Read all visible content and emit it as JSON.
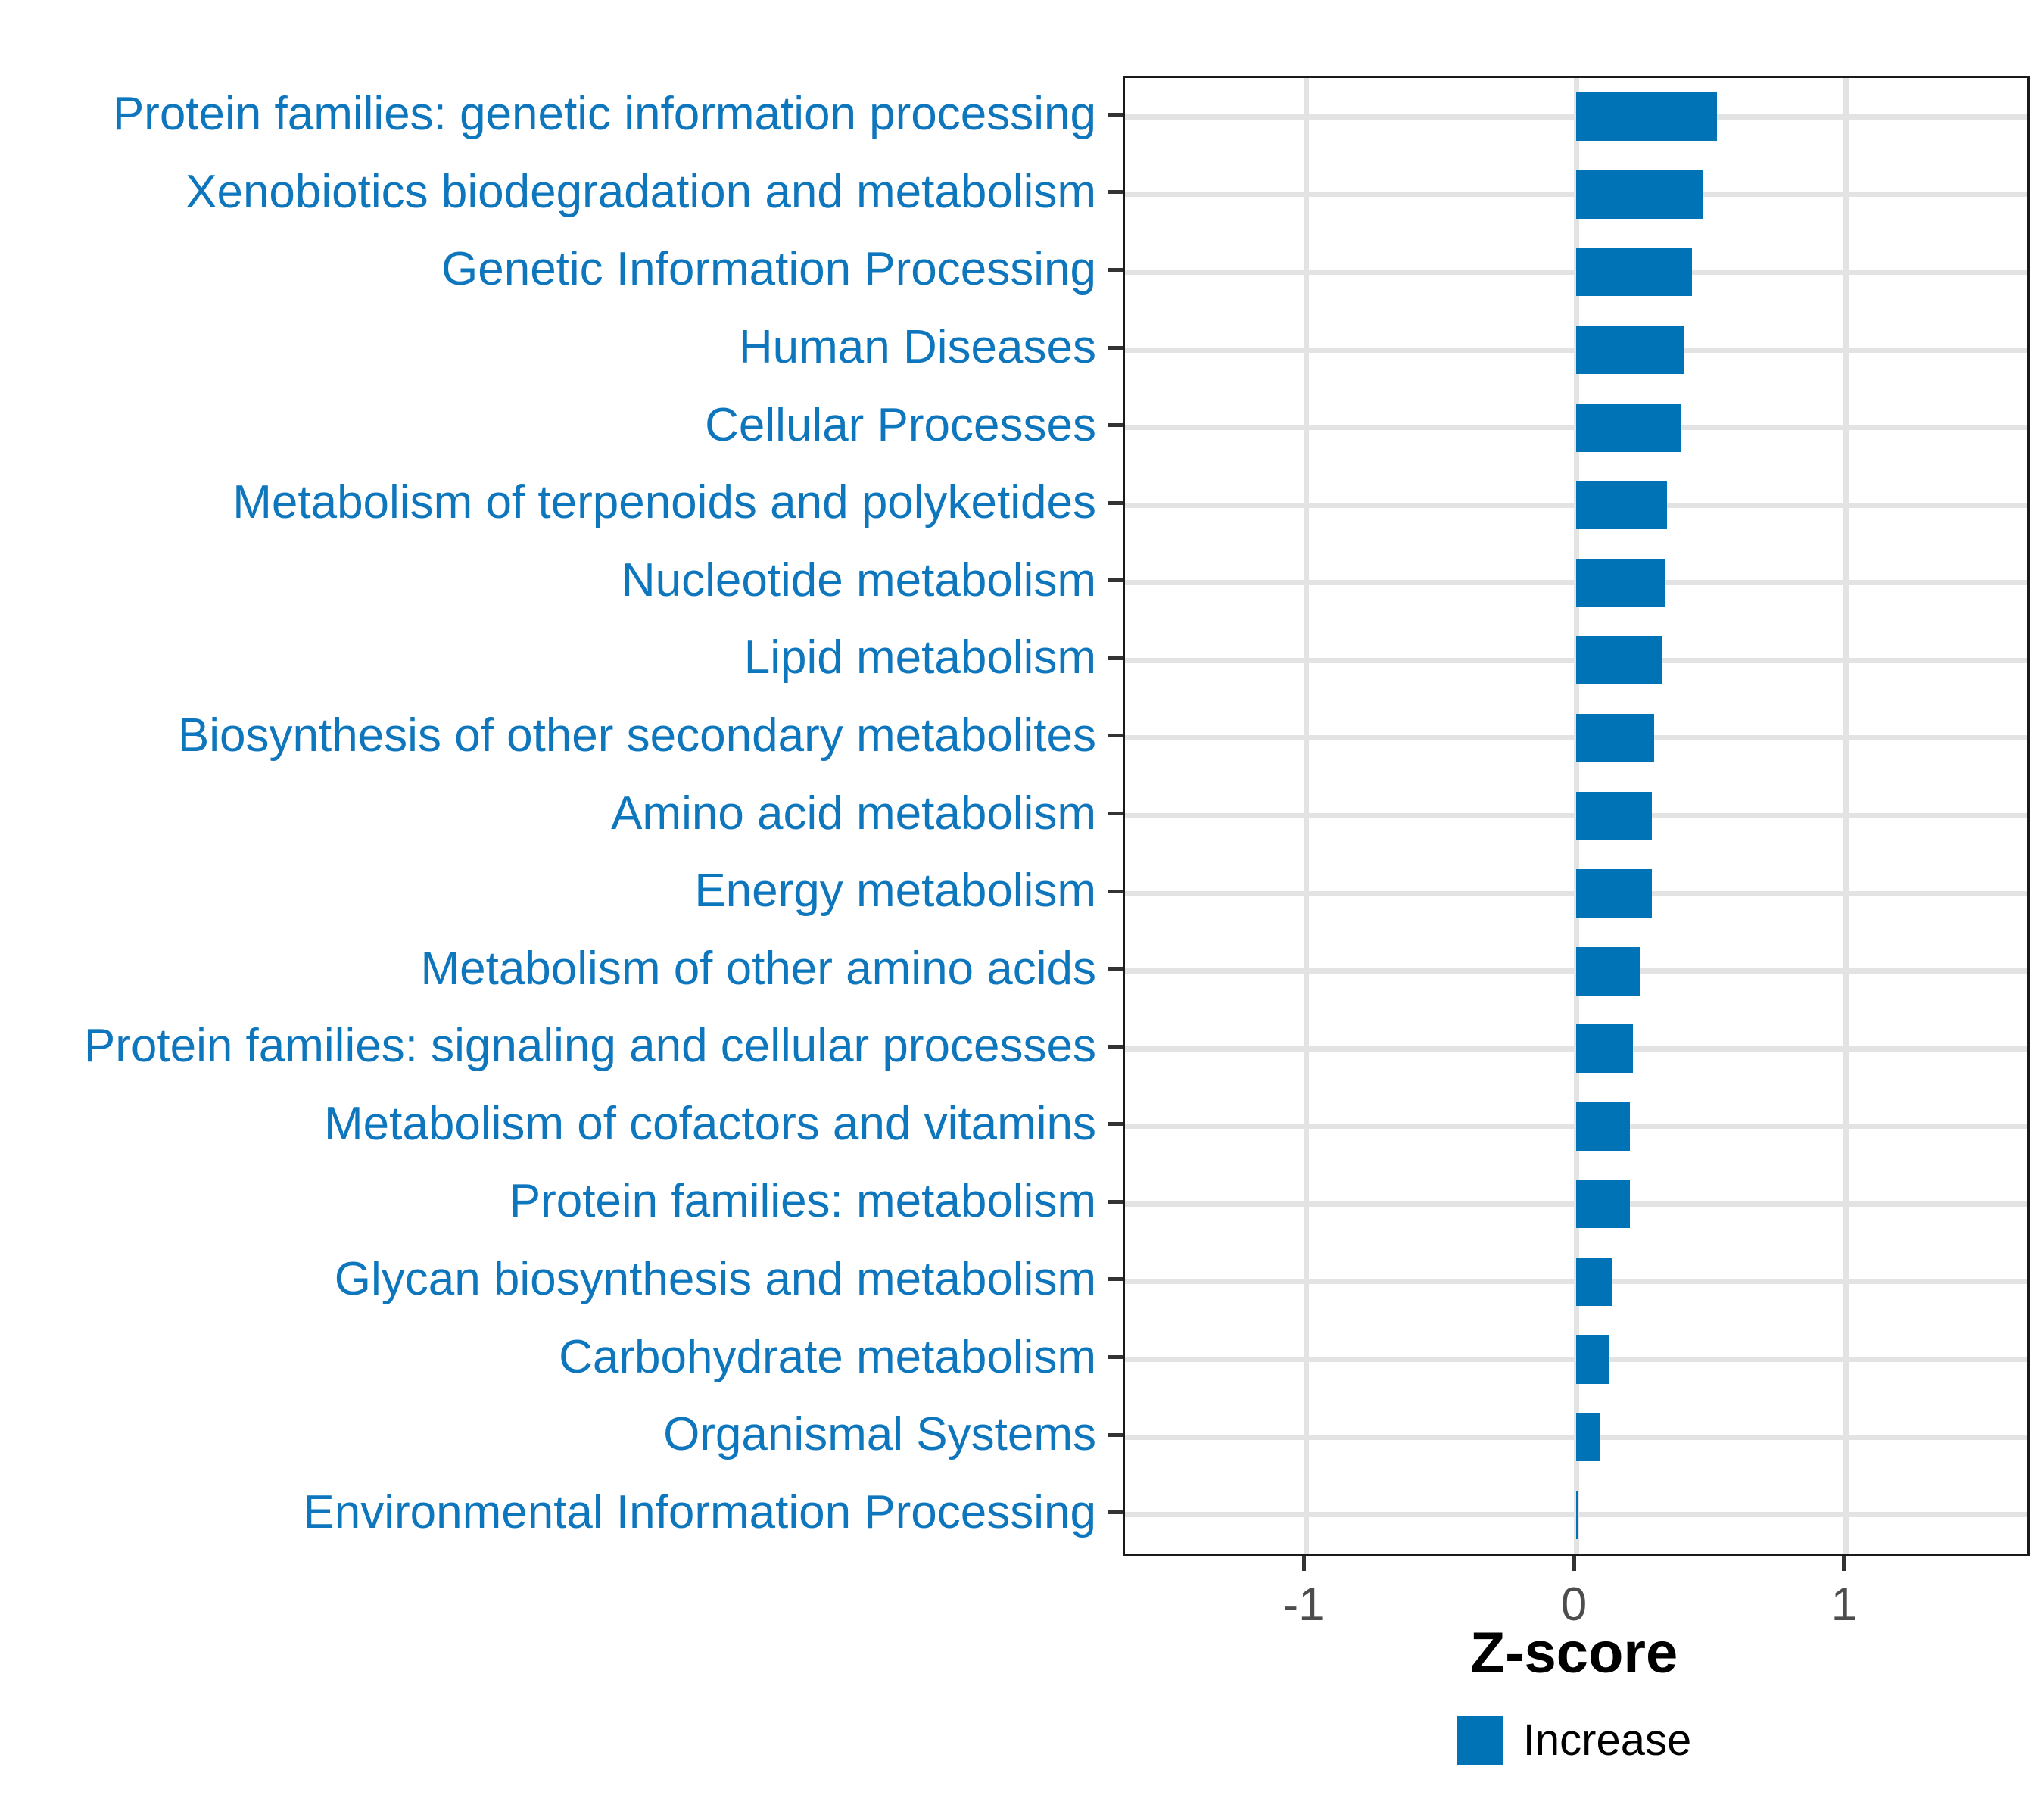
{
  "chart_data": {
    "type": "bar",
    "orientation": "horizontal",
    "title": "",
    "xlabel": "Z-score",
    "ylabel": "",
    "grid": true,
    "legend": {
      "label": "Increase",
      "position": "bottom-center"
    },
    "xlim": [
      -1.67,
      1.67
    ],
    "xticks": [
      -1,
      0,
      1
    ],
    "xtick_labels": [
      "-1",
      "0",
      "1"
    ],
    "categories": [
      "Protein families: genetic information processing",
      "Xenobiotics biodegradation and metabolism",
      "Genetic Information Processing",
      "Human Diseases",
      "Cellular Processes",
      "Metabolism of terpenoids and polyketides",
      "Nucleotide metabolism",
      "Lipid metabolism",
      "Biosynthesis of other secondary metabolites",
      "Amino acid metabolism",
      "Energy metabolism",
      "Metabolism of other amino acids",
      "Protein families: signaling and cellular processes",
      "Metabolism of cofactors and vitamins",
      "Protein families: metabolism",
      "Glycan biosynthesis and metabolism",
      "Carbohydrate metabolism",
      "Organismal Systems",
      "Environmental Information Processing"
    ],
    "values": [
      0.52,
      0.47,
      0.43,
      0.4,
      0.39,
      0.335,
      0.33,
      0.32,
      0.29,
      0.28,
      0.28,
      0.235,
      0.21,
      0.2,
      0.2,
      0.135,
      0.12,
      0.09,
      0.005
    ],
    "series_name": "Increase",
    "colors": {
      "bar": "#0073B6",
      "category_label": "#0E76BC",
      "tick_label": "#4D4D4D",
      "axis_title": "#000000",
      "grid": "#E3E3E3",
      "panel_border": "#1A1A1A",
      "tick_mark": "#333333",
      "background": "#FFFFFF"
    }
  }
}
